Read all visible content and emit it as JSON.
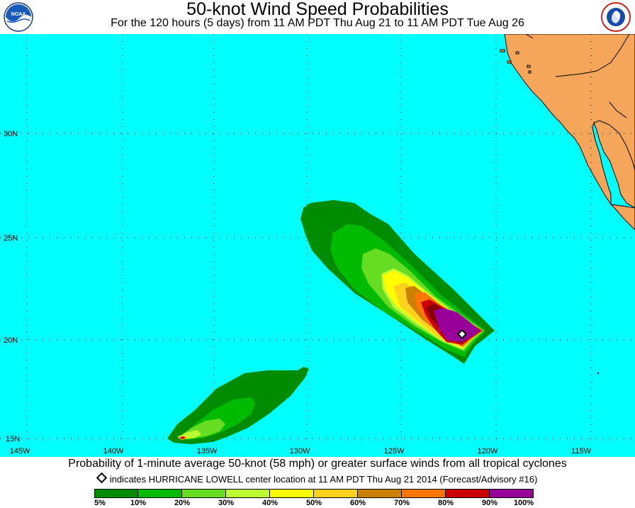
{
  "header": {
    "title": "50-knot Wind Speed Probabilities",
    "subtitle": "For the 120 hours (5 days) from 11 AM PDT Thu Aug 21 to 11 AM PDT Tue Aug 26",
    "left_logo": "NOAA",
    "right_logo": "NATIONAL WEATHER SERVICE"
  },
  "map": {
    "ocean_color": "#00FFFF",
    "land_color": "#F5A65A",
    "lat_labels": [
      "30N",
      "25N",
      "20N",
      "15N"
    ],
    "lon_labels": [
      "145W",
      "140W",
      "135W",
      "130W",
      "125W",
      "120W",
      "115W"
    ],
    "storm_marker": "diamond-icon"
  },
  "caption": {
    "text": "Probability of 1-minute average 50-knot (58 mph) or greater surface winds from all tropical cyclones",
    "indicator_text": "indicates HURRICANE LOWELL center location at 11 AM PDT Thu Aug 21 2014 (Forecast/Advisory #16)"
  },
  "legend": {
    "colors": [
      "#008C00",
      "#00BB00",
      "#66DD22",
      "#BBFF33",
      "#FFFF00",
      "#FFD21E",
      "#CC8000",
      "#FF7700",
      "#CC0000",
      "#880000",
      "#990099"
    ],
    "labels": [
      "5%",
      "10%",
      "20%",
      "30%",
      "40%",
      "50%",
      "60%",
      "70%",
      "80%",
      "90%",
      "100%"
    ]
  }
}
